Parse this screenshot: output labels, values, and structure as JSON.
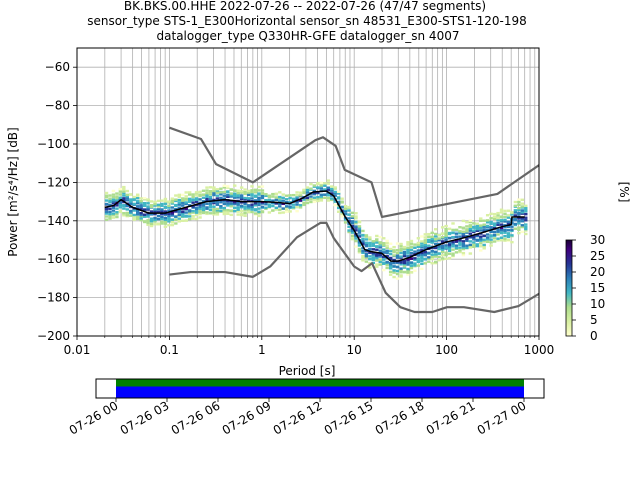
{
  "header": {
    "line1": "BK.BKS.00.HHE   2022-07-26 -- 2022-07-26  (47/47 segments)",
    "line2": "sensor_type STS-1_E300Horizontal sensor_sn 48531_E300-STS1-120-198",
    "line3": "datalogger_type Q330HR-GFE datalogger_sn 4007"
  },
  "colors": {
    "noise_model": "#666666",
    "mode_line": "#000000",
    "grid": "#b0b0b0",
    "coverage_good": "#0000ff",
    "coverage_bar": "#008000",
    "colormap": [
      "#ffffcc",
      "#d9f0a3",
      "#addd8e",
      "#41b6c4",
      "#2c7fb8",
      "#253494",
      "#3f007d",
      "#1a0033"
    ]
  },
  "chart_data": [
    {
      "type": "heatmap",
      "title": "",
      "xlabel": "Period [s]",
      "ylabel": "Power [m²/s⁴/Hz] [dB]",
      "xscale": "log",
      "xlim": [
        0.01,
        1000
      ],
      "ylim": [
        -200,
        -50
      ],
      "grid": true,
      "x_tick_labels": [
        "0.01",
        "0.1",
        "1",
        "10",
        "100",
        "1000"
      ],
      "y_tick_labels": [
        "−200",
        "−180",
        "−160",
        "−140",
        "−120",
        "−100",
        "−80",
        "−60"
      ],
      "colorbar": {
        "label": "[%]",
        "range": [
          0,
          30
        ],
        "tick_labels": [
          "0",
          "5",
          "10",
          "15",
          "20",
          "25",
          "30"
        ]
      },
      "series": [
        {
          "kind": "high_noise_model",
          "points": [
            [
              0.1,
              -91.5
            ],
            [
              0.22,
              -97.4
            ],
            [
              0.32,
              -110.5
            ],
            [
              0.8,
              -120
            ],
            [
              3.8,
              -98
            ],
            [
              4.6,
              -96.5
            ],
            [
              6.3,
              -101
            ],
            [
              7.9,
              -113.5
            ],
            [
              15.4,
              -120
            ],
            [
              20,
              -138
            ],
            [
              354.8,
              -126
            ],
            [
              1000,
              -111
            ]
          ]
        },
        {
          "kind": "low_noise_model",
          "points": [
            [
              0.1,
              -168
            ],
            [
              0.17,
              -166.7
            ],
            [
              0.4,
              -166.7
            ],
            [
              0.8,
              -169.2
            ],
            [
              1.24,
              -163.7
            ],
            [
              2.4,
              -148.6
            ],
            [
              4.3,
              -141.1
            ],
            [
              5,
              -141.1
            ],
            [
              6,
              -149
            ],
            [
              10,
              -163.8
            ],
            [
              12,
              -166.2
            ],
            [
              15.6,
              -162.1
            ],
            [
              21.9,
              -177.5
            ],
            [
              31.6,
              -185
            ],
            [
              45,
              -187.5
            ],
            [
              70,
              -187.5
            ],
            [
              101,
              -185
            ],
            [
              154,
              -185
            ],
            [
              328,
              -187.5
            ],
            [
              600,
              -184.4
            ],
            [
              1000,
              -178
            ]
          ]
        },
        {
          "kind": "mode",
          "points": [
            [
              0.02,
              -133
            ],
            [
              0.025,
              -132
            ],
            [
              0.03,
              -129
            ],
            [
              0.04,
              -133
            ],
            [
              0.06,
              -136
            ],
            [
              0.09,
              -136
            ],
            [
              0.15,
              -133
            ],
            [
              0.25,
              -130
            ],
            [
              0.4,
              -129
            ],
            [
              0.6,
              -130
            ],
            [
              1,
              -130
            ],
            [
              1.5,
              -130.5
            ],
            [
              2,
              -131
            ],
            [
              2.8,
              -128
            ],
            [
              3.6,
              -125
            ],
            [
              5,
              -124.5
            ],
            [
              6,
              -127
            ],
            [
              8,
              -138
            ],
            [
              10,
              -145
            ],
            [
              13,
              -155
            ],
            [
              15,
              -156
            ],
            [
              20,
              -157
            ],
            [
              25,
              -161
            ],
            [
              30,
              -161
            ],
            [
              40,
              -159
            ],
            [
              60,
              -155
            ],
            [
              100,
              -151
            ],
            [
              150,
              -149
            ],
            [
              250,
              -146
            ],
            [
              400,
              -143
            ],
            [
              500,
              -142
            ],
            [
              510,
              -138
            ],
            [
              700,
              -138
            ]
          ]
        }
      ]
    },
    {
      "type": "bar",
      "title": "",
      "xlabel": "",
      "ylabel": "",
      "x_tick_labels": [
        "07-26 00",
        "07-26 03",
        "07-26 06",
        "07-26 09",
        "07-26 12",
        "07-26 15",
        "07-26 18",
        "07-26 21",
        "07-27 00"
      ],
      "series": [
        {
          "kind": "coverage",
          "start_hours": 0,
          "end_hours": 24
        }
      ]
    }
  ]
}
